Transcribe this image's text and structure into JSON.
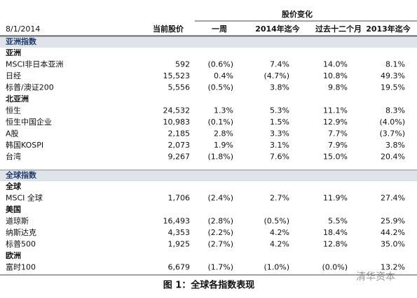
{
  "header": {
    "group_label": "股价变化",
    "date": "8/1/2014",
    "columns": [
      "当前股价",
      "一周",
      "2014年迄今",
      "过去十二个月",
      "2013年迄今"
    ]
  },
  "sections": [
    {
      "title": "亚洲指数",
      "groups": [
        {
          "title": "亚洲",
          "rows": [
            [
              "MSCI非日本亚洲",
              "592",
              "(0.6%)",
              "7.4%",
              "14.0%",
              "8.1%"
            ],
            [
              "日经",
              "15,523",
              "0.4%",
              "(4.7%)",
              "10.8%",
              "49.3%"
            ],
            [
              "标普/澳证200",
              "5,556",
              "(0.5%)",
              "3.8%",
              "9.8%",
              "19.5%"
            ]
          ]
        },
        {
          "title": "北亚洲",
          "rows": [
            [
              "恒生",
              "24,532",
              "1.3%",
              "5.3%",
              "11.1%",
              "8.3%"
            ],
            [
              "恒生中国企业",
              "10,983",
              "(0.1%)",
              "1.5%",
              "12.9%",
              "(4.0%)"
            ],
            [
              "A股",
              "2,185",
              "2.8%",
              "3.3%",
              "7.7%",
              "(3.7%)"
            ],
            [
              "韩国KOSPI",
              "2,073",
              "1.9%",
              "3.1%",
              "7.9%",
              "3.8%"
            ],
            [
              "台湾",
              "9,267",
              "(1.8%)",
              "7.6%",
              "15.0%",
              "20.4%"
            ]
          ]
        }
      ]
    },
    {
      "title": "全球指数",
      "groups": [
        {
          "title": "全球",
          "rows": [
            [
              "MSCI 全球",
              "1,706",
              "(2.4%)",
              "2.7%",
              "11.9%",
              "27.4%"
            ]
          ]
        },
        {
          "title": "美国",
          "rows": [
            [
              "道琼斯",
              "16,493",
              "(2.8%)",
              "(0.5%)",
              "5.5%",
              "25.9%"
            ],
            [
              "纳斯达克",
              "4,353",
              "(2.2%)",
              "4.2%",
              "18.4%",
              "44.2%"
            ],
            [
              "标普500",
              "1,925",
              "(2.7%)",
              "4.2%",
              "12.8%",
              "35.0%"
            ]
          ]
        },
        {
          "title": "欧洲",
          "rows": [
            [
              "富时100",
              "6,679",
              "(1.7%)",
              "(1.0%)",
              "(0.0%)",
              "13.2%"
            ]
          ]
        }
      ]
    }
  ],
  "caption": "图 1：全球各指数表现",
  "watermark": "清华资本"
}
